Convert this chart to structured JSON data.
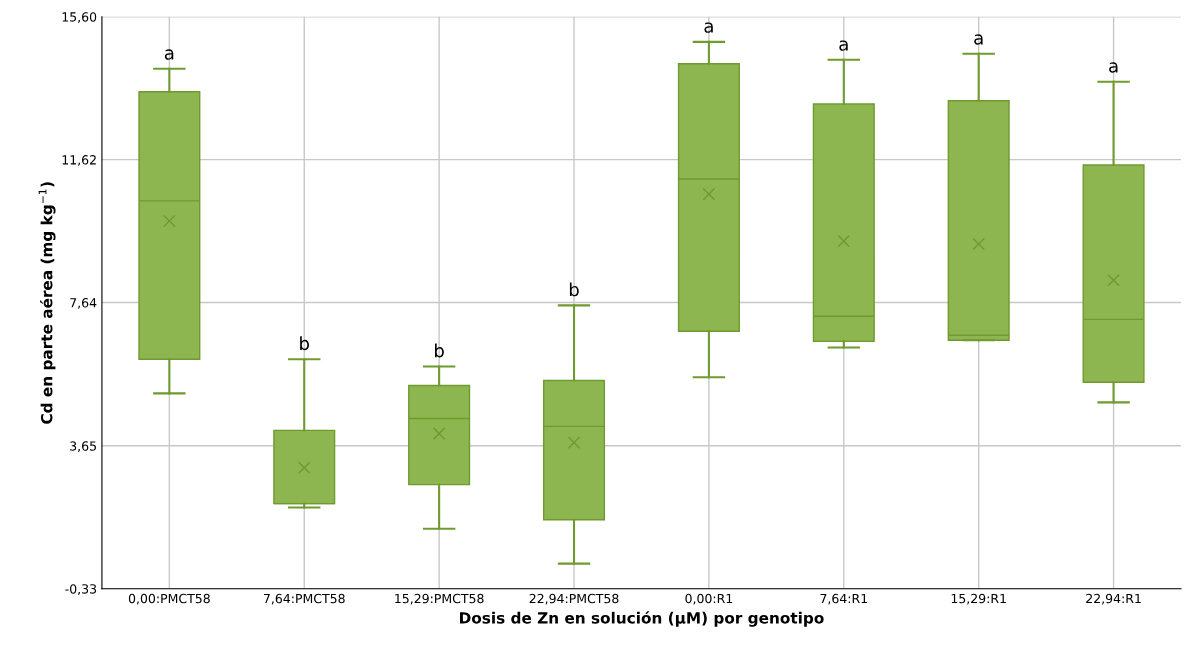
{
  "chart_data": {
    "type": "box",
    "xlabel": "Dosis de Zn en solución (µM) por genotipo",
    "ylabel": "Cd en parte aérea (mg kg$^{−1}$)",
    "categories": [
      "0,00:PMCT58",
      "7,64:PMCT58",
      "15,29:PMCT58",
      "22,94:PMCT58",
      "0,00:R1",
      "7,64:R1",
      "15,29:R1",
      "22,94:R1"
    ],
    "boxes": [
      {
        "low": 5.11,
        "q1": 6.06,
        "median": 10.47,
        "q3": 13.51,
        "high": 14.15,
        "mean": 9.91
      },
      {
        "low": 1.93,
        "q1": 2.04,
        "median": 2.04,
        "q3": 4.08,
        "high": 6.06,
        "mean": 3.04
      },
      {
        "low": 1.34,
        "q1": 2.57,
        "median": 4.41,
        "q3": 5.33,
        "high": 5.86,
        "mean": 3.99
      },
      {
        "low": 0.37,
        "q1": 1.59,
        "median": 4.19,
        "q3": 5.47,
        "high": 7.56,
        "mean": 3.74
      },
      {
        "low": 5.56,
        "q1": 6.84,
        "median": 11.08,
        "q3": 14.29,
        "high": 14.9,
        "mean": 10.66
      },
      {
        "low": 6.39,
        "q1": 6.56,
        "median": 7.26,
        "q3": 13.17,
        "high": 14.4,
        "mean": 9.35
      },
      {
        "low": 6.59,
        "q1": 6.59,
        "median": 6.73,
        "q3": 13.26,
        "high": 14.57,
        "mean": 9.27
      },
      {
        "low": 4.86,
        "q1": 5.42,
        "median": 7.17,
        "q3": 11.47,
        "high": 13.79,
        "mean": 8.26
      }
    ],
    "color": "#8db650",
    "ylim": [
      -0.33,
      15.6
    ],
    "yticks": [
      {
        "value": -0.33,
        "label": "-0,33"
      },
      {
        "value": 3.65,
        "label": "3,65"
      },
      {
        "value": 7.64,
        "label": "7,64"
      },
      {
        "value": 11.62,
        "label": "11,62"
      },
      {
        "value": 15.6,
        "label": "15,60"
      }
    ],
    "grid": true,
    "annotations": [
      {
        "text": "a",
        "x": "0,00:PMCT58",
        "y": 14.15
      },
      {
        "text": "b",
        "x": "7,64:PMCT58",
        "y": 6.06
      },
      {
        "text": "b",
        "x": "15,29:PMCT58",
        "y": 5.86
      },
      {
        "text": "b",
        "x": "22,94:PMCT58",
        "y": 7.56
      },
      {
        "text": "a",
        "x": "0,00:R1",
        "y": 14.9
      },
      {
        "text": "a",
        "x": "7,64:R1",
        "y": 14.4
      },
      {
        "text": "a",
        "x": "15,29:R1",
        "y": 14.57
      },
      {
        "text": "a",
        "x": "22,94:R1",
        "y": 13.79
      }
    ]
  }
}
